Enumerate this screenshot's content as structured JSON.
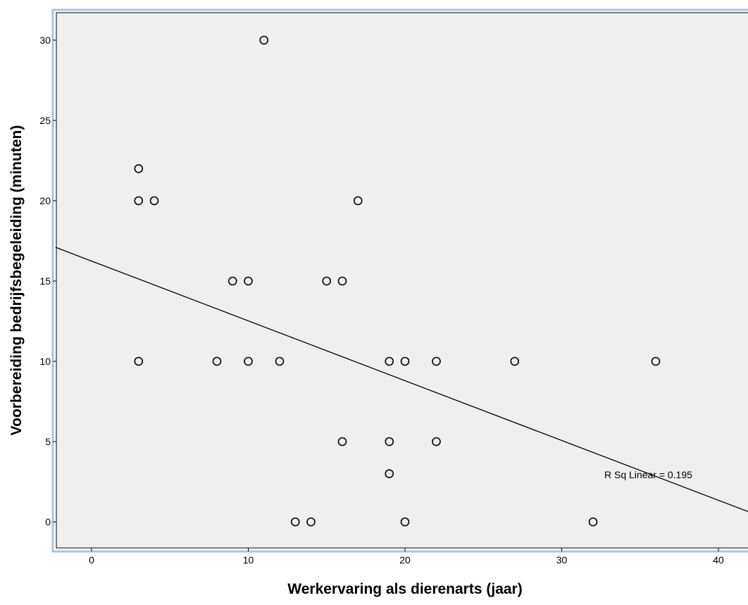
{
  "chart_data": {
    "type": "scatter",
    "xlabel": "Werkervaring als dierenarts (jaar)",
    "ylabel": "Voorbereiding bedrijfsbegeleiding (minuten)",
    "xlim": [
      -2.3,
      42
    ],
    "ylim": [
      -1.5,
      32
    ],
    "x_ticks": [
      0,
      10,
      20,
      30,
      40
    ],
    "y_ticks": [
      0,
      5,
      10,
      15,
      20,
      25,
      30
    ],
    "grid": false,
    "colors": {
      "plot_background": "#efefef",
      "frame": "#a6c6e6",
      "points": "#000000",
      "fit_line": "#000000"
    },
    "points": [
      {
        "x": 11,
        "y": 30
      },
      {
        "x": 3,
        "y": 22
      },
      {
        "x": 3,
        "y": 20
      },
      {
        "x": 4,
        "y": 20
      },
      {
        "x": 17,
        "y": 20
      },
      {
        "x": 9,
        "y": 15
      },
      {
        "x": 10,
        "y": 15
      },
      {
        "x": 15,
        "y": 15
      },
      {
        "x": 16,
        "y": 15
      },
      {
        "x": 3,
        "y": 10
      },
      {
        "x": 8,
        "y": 10
      },
      {
        "x": 10,
        "y": 10
      },
      {
        "x": 12,
        "y": 10
      },
      {
        "x": 19,
        "y": 10
      },
      {
        "x": 20,
        "y": 10
      },
      {
        "x": 22,
        "y": 10
      },
      {
        "x": 27,
        "y": 10
      },
      {
        "x": 36,
        "y": 10
      },
      {
        "x": 16,
        "y": 5
      },
      {
        "x": 19,
        "y": 5
      },
      {
        "x": 22,
        "y": 5
      },
      {
        "x": 19,
        "y": 3
      },
      {
        "x": 13,
        "y": 0
      },
      {
        "x": 14,
        "y": 0
      },
      {
        "x": 20,
        "y": 0
      },
      {
        "x": 32,
        "y": 0
      }
    ],
    "fit_line": {
      "type": "linear",
      "x_range": [
        -2.3,
        42
      ],
      "y_start": 17.1,
      "y_end": 0.6
    },
    "annotation": "R Sq Linear = 0.195"
  }
}
